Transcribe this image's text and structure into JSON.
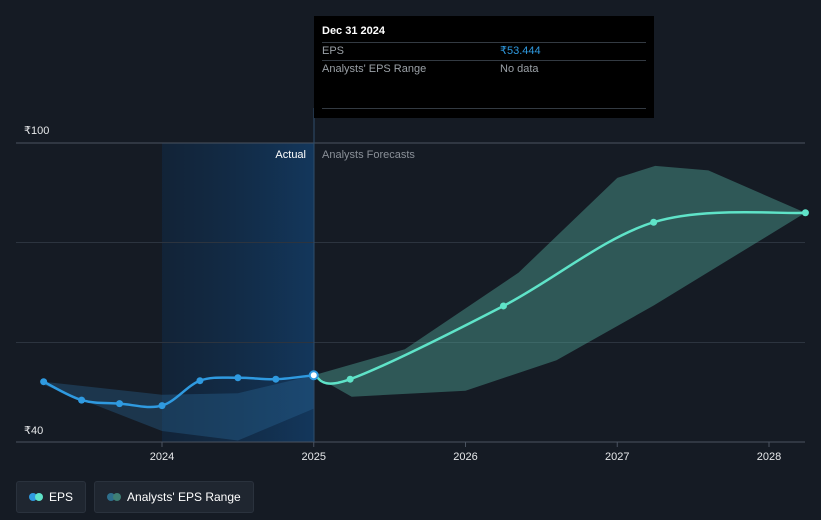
{
  "chart_data": {
    "type": "line",
    "currency": "₹",
    "y_axis": {
      "min": 40,
      "max": 100,
      "tick_labels": [
        "₹100",
        "₹40"
      ]
    },
    "x_axis": {
      "ticks": [
        "2024",
        "2025",
        "2026",
        "2027",
        "2028"
      ]
    },
    "regions": {
      "actual_label": "Actual",
      "forecast_label": "Analysts Forecasts"
    },
    "series": [
      {
        "name": "EPS",
        "color": "#2f9ae0",
        "points": [
          {
            "x": 2023.22,
            "y": 52.1
          },
          {
            "x": 2023.47,
            "y": 48.4
          },
          {
            "x": 2023.72,
            "y": 47.7
          },
          {
            "x": 2024.0,
            "y": 47.3
          },
          {
            "x": 2024.25,
            "y": 52.3
          },
          {
            "x": 2024.5,
            "y": 52.9
          },
          {
            "x": 2024.75,
            "y": 52.6
          },
          {
            "x": 2025.0,
            "y": 53.4
          }
        ]
      },
      {
        "name": "EPS Forecast",
        "color": "#5fe3c8",
        "points": [
          {
            "x": 2025.0,
            "y": 53.4
          },
          {
            "x": 2025.24,
            "y": 52.6
          },
          {
            "x": 2026.25,
            "y": 67.3
          },
          {
            "x": 2027.24,
            "y": 84.1
          },
          {
            "x": 2028.24,
            "y": 86.0
          }
        ]
      }
    ],
    "eps_range_actual": {
      "upper": [
        [
          2023.22,
          52.1
        ],
        [
          2024.0,
          49.5
        ],
        [
          2024.5,
          49.8
        ],
        [
          2025.0,
          53.4
        ]
      ],
      "lower": [
        [
          2023.22,
          51.5
        ],
        [
          2024.0,
          42.2
        ],
        [
          2024.5,
          40.3
        ],
        [
          2025.0,
          46.7
        ]
      ]
    },
    "eps_range_forecast": {
      "upper": [
        [
          2025.0,
          53.4
        ],
        [
          2025.6,
          58.6
        ],
        [
          2026.35,
          74.0
        ],
        [
          2027.0,
          93.0
        ],
        [
          2027.25,
          95.4
        ],
        [
          2027.6,
          94.5
        ],
        [
          2028.24,
          86.0
        ]
      ],
      "lower": [
        [
          2025.0,
          53.4
        ],
        [
          2025.25,
          49.1
        ],
        [
          2026.0,
          50.3
        ],
        [
          2026.6,
          56.4
        ],
        [
          2027.24,
          67.4
        ],
        [
          2028.24,
          86.0
        ]
      ]
    },
    "tooltip": {
      "date": "Dec 31 2024",
      "rows": [
        {
          "label": "EPS",
          "value": "₹53.444"
        },
        {
          "label": "Analysts' EPS Range",
          "value": "No data"
        }
      ]
    },
    "legend": [
      {
        "label": "EPS",
        "colors": [
          "#2f9ae0",
          "#5fe3c8"
        ]
      },
      {
        "label": "Analysts' EPS Range",
        "colors": [
          "#2e6f8c",
          "#3f7f74"
        ]
      }
    ]
  }
}
